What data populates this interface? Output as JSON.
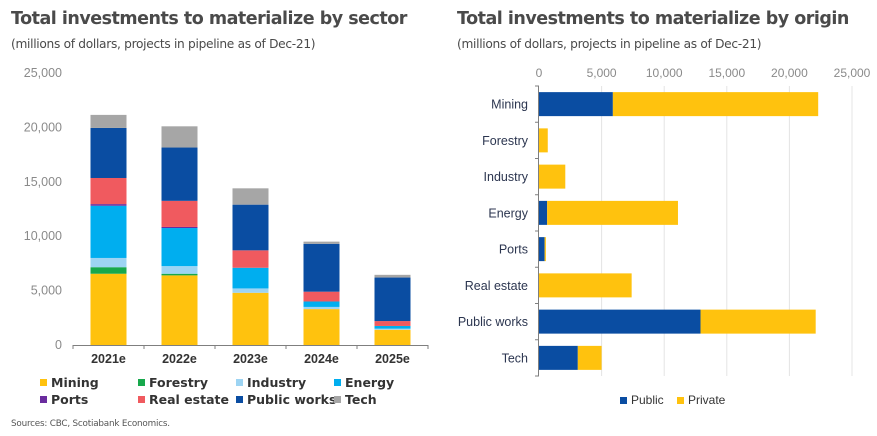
{
  "left": {
    "title": "Total investments to materialize by sector",
    "subtitle": "(millions of dollars, projects in pipeline as of Dec-21)"
  },
  "right": {
    "title": "Total investments to materialize by origin",
    "subtitle": "(millions of dollars, projects in pipeline as of Dec-21)"
  },
  "source": "Sources: CBC, Scotiabank Economics.",
  "colors": {
    "Mining": "#FFC20E",
    "Forestry": "#17A84C",
    "Industry": "#9DD4F3",
    "Energy": "#00AEEF",
    "Ports": "#6A2C9E",
    "Real estate": "#F05A5F",
    "Public works": "#0A4DA2",
    "Tech": "#A6A6A6",
    "Public": "#0A4DA2",
    "Private": "#FFC20E"
  },
  "chart_data": [
    {
      "type": "bar",
      "stacked": true,
      "orientation": "vertical",
      "title": "Total investments to materialize by sector",
      "subtitle": "(millions of dollars, projects in pipeline as of Dec-21)",
      "xlabel": "",
      "ylabel": "",
      "ylim": [
        0,
        25000
      ],
      "yticks": [
        0,
        5000,
        10000,
        15000,
        20000,
        25000
      ],
      "ytick_labels": [
        "0",
        "5,000",
        "10,000",
        "15,000",
        "20,000",
        "25,000"
      ],
      "grid": false,
      "legend_position": "bottom",
      "categories": [
        "2021e",
        "2022e",
        "2023e",
        "2024e",
        "2025e"
      ],
      "series": [
        {
          "name": "Mining",
          "values": [
            6550,
            6400,
            4800,
            3300,
            1400
          ]
        },
        {
          "name": "Forestry",
          "values": [
            600,
            150,
            0,
            0,
            0
          ]
        },
        {
          "name": "Industry",
          "values": [
            850,
            700,
            400,
            200,
            100
          ]
        },
        {
          "name": "Energy",
          "values": [
            4800,
            3500,
            1900,
            500,
            250
          ]
        },
        {
          "name": "Ports",
          "values": [
            150,
            100,
            0,
            0,
            0
          ]
        },
        {
          "name": "Real estate",
          "values": [
            2400,
            2400,
            1600,
            900,
            450
          ]
        },
        {
          "name": "Public works",
          "values": [
            4600,
            4900,
            4200,
            4400,
            4000
          ]
        },
        {
          "name": "Tech",
          "values": [
            1200,
            1950,
            1500,
            200,
            250
          ]
        }
      ]
    },
    {
      "type": "bar",
      "stacked": true,
      "orientation": "horizontal",
      "title": "Total investments to materialize by origin",
      "subtitle": "(millions of dollars, projects in pipeline as of Dec-21)",
      "xlabel": "",
      "ylabel": "",
      "xlim": [
        0,
        25000
      ],
      "xticks": [
        0,
        5000,
        10000,
        15000,
        20000,
        25000
      ],
      "xtick_labels": [
        "0",
        "5,000",
        "10,000",
        "15,000",
        "20,000",
        "25,000"
      ],
      "xaxis_position": "top",
      "grid": true,
      "legend_position": "bottom",
      "categories": [
        "Mining",
        "Forestry",
        "Industry",
        "Energy",
        "Ports",
        "Real estate",
        "Public works",
        "Tech"
      ],
      "series": [
        {
          "name": "Public",
          "values": [
            5900,
            0,
            0,
            650,
            450,
            0,
            12900,
            3100
          ]
        },
        {
          "name": "Private",
          "values": [
            16400,
            700,
            2100,
            10450,
            100,
            7400,
            9200,
            1900
          ]
        }
      ]
    }
  ]
}
